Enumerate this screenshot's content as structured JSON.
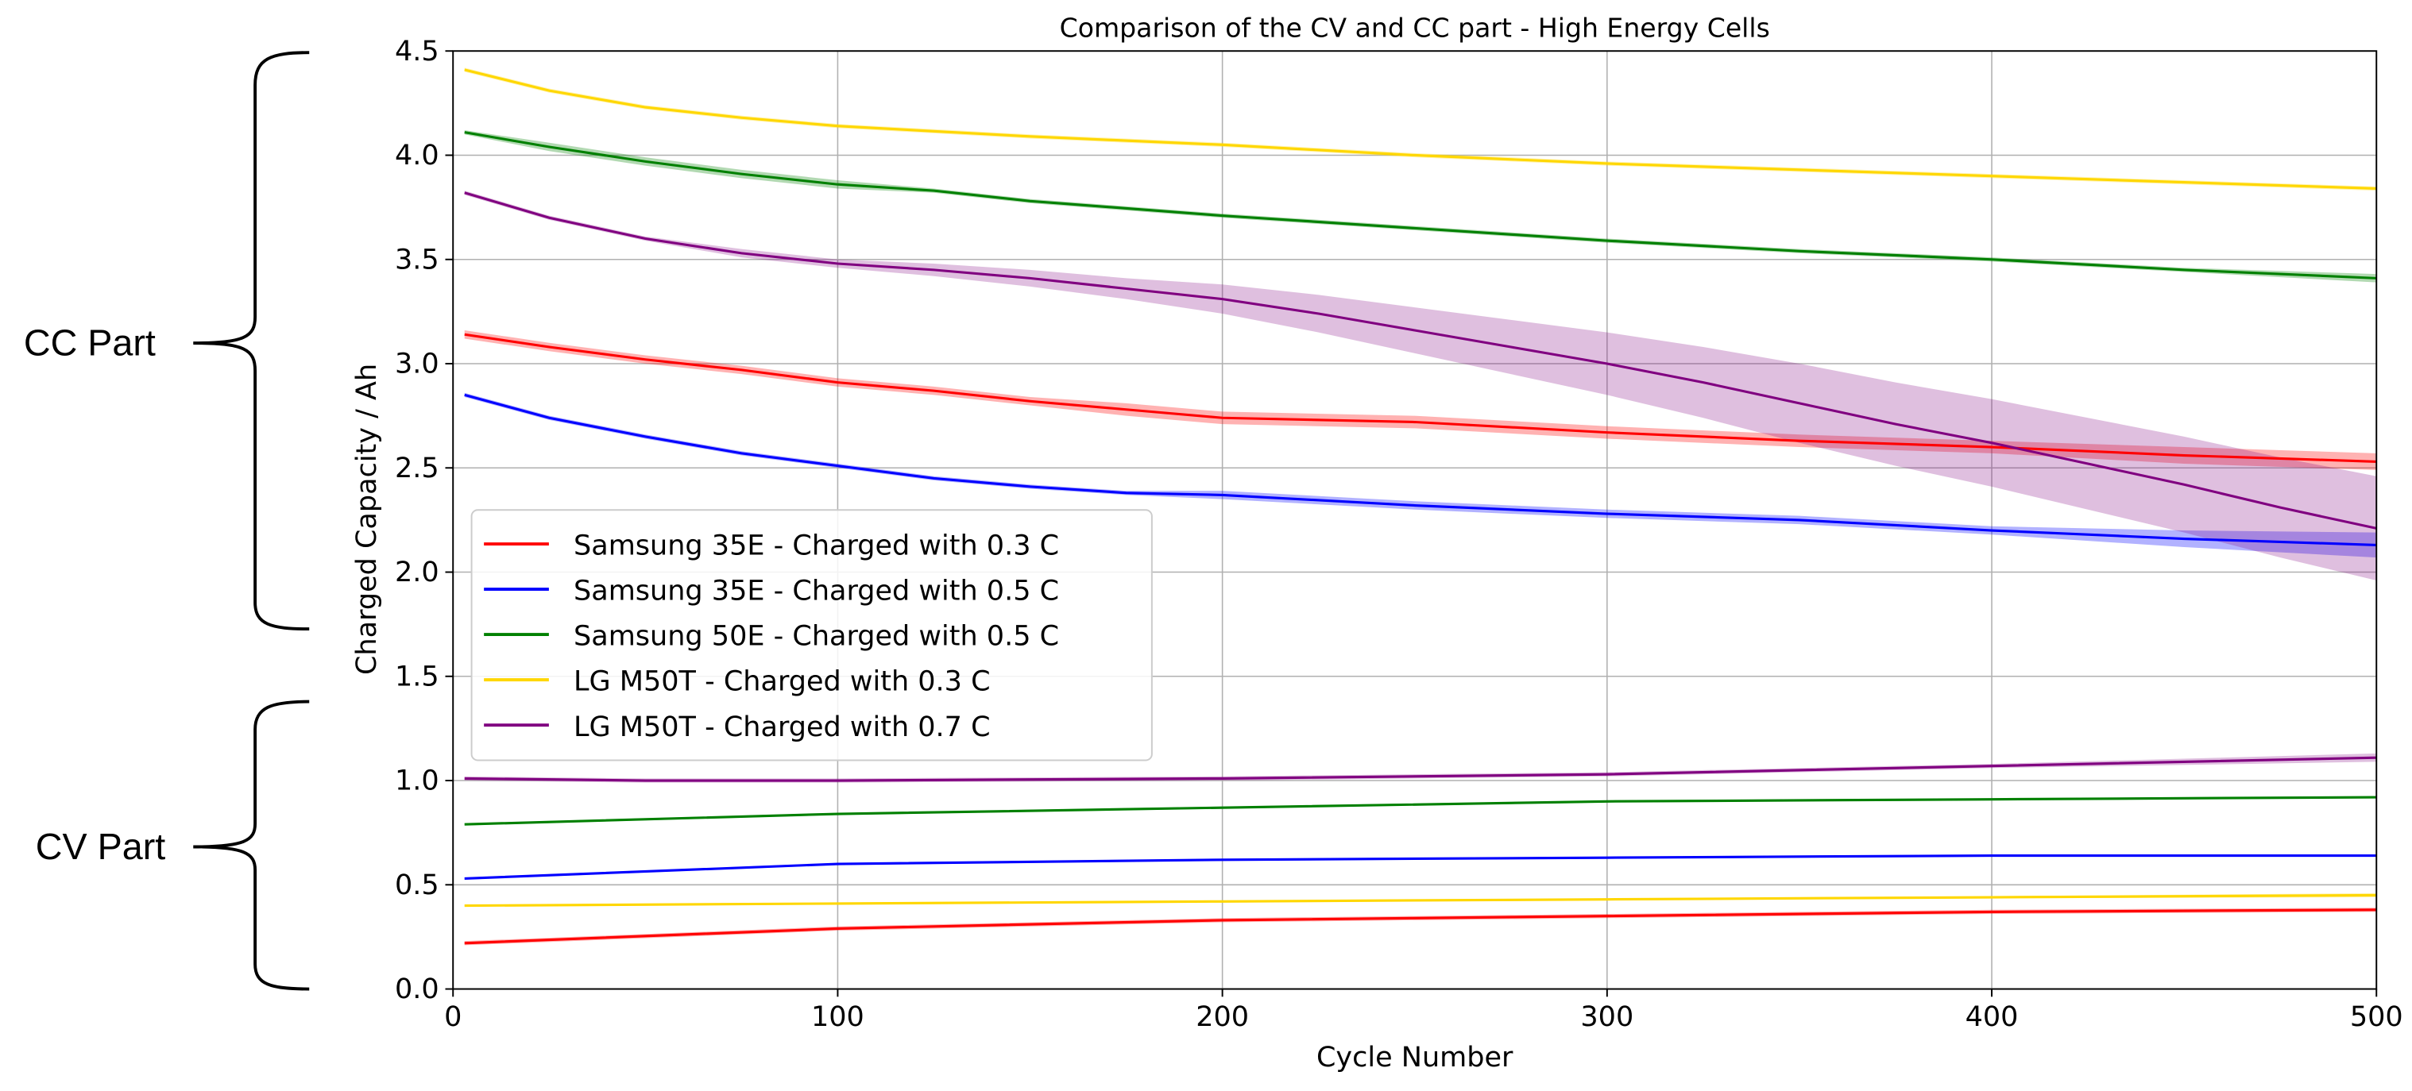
{
  "chart_data": {
    "type": "line",
    "title": "Comparison of the CV and CC part - High Energy Cells",
    "xlabel": "Cycle Number",
    "ylabel": "Charged Capacity / Ah",
    "xlim": [
      0,
      500
    ],
    "ylim": [
      0,
      4.5
    ],
    "xticks": [
      "0",
      "100",
      "200",
      "300",
      "400",
      "500"
    ],
    "yticks": [
      "0.0",
      "0.5",
      "1.0",
      "1.5",
      "2.0",
      "2.5",
      "3.0",
      "3.5",
      "4.0",
      "4.5"
    ],
    "grid": true,
    "legend_position": "center-left",
    "annotations": [
      {
        "text": "CC Part",
        "ymin": 2.0,
        "ymax": 4.5
      },
      {
        "text": "CV Part",
        "ymin": 0.0,
        "ymax": 1.4
      }
    ],
    "series": [
      {
        "name": "Samsung 35E - Charged with 0.3 C",
        "color": "#ff0000",
        "part": "CC",
        "x": [
          3,
          25,
          50,
          75,
          100,
          125,
          150,
          175,
          200,
          250,
          300,
          350,
          400,
          450,
          500
        ],
        "y": [
          3.14,
          3.08,
          3.02,
          2.97,
          2.91,
          2.87,
          2.82,
          2.78,
          2.74,
          2.72,
          2.67,
          2.63,
          2.6,
          2.56,
          2.53
        ],
        "std": [
          0.02,
          0.02,
          0.02,
          0.02,
          0.02,
          0.02,
          0.02,
          0.03,
          0.03,
          0.03,
          0.03,
          0.03,
          0.03,
          0.04,
          0.04
        ]
      },
      {
        "name": "Samsung 35E - Charged with 0.5 C",
        "color": "#0000ff",
        "part": "CC",
        "x": [
          3,
          25,
          50,
          75,
          100,
          125,
          150,
          175,
          200,
          250,
          300,
          350,
          400,
          450,
          500
        ],
        "y": [
          2.85,
          2.74,
          2.65,
          2.57,
          2.51,
          2.45,
          2.41,
          2.38,
          2.37,
          2.32,
          2.28,
          2.25,
          2.2,
          2.16,
          2.13
        ],
        "std": [
          0.01,
          0.01,
          0.01,
          0.01,
          0.01,
          0.01,
          0.01,
          0.01,
          0.02,
          0.02,
          0.02,
          0.02,
          0.02,
          0.04,
          0.06
        ]
      },
      {
        "name": "Samsung 50E - Charged with 0.5 C",
        "color": "#008000",
        "part": "CC",
        "x": [
          3,
          25,
          50,
          75,
          100,
          125,
          150,
          200,
          250,
          300,
          350,
          400,
          450,
          500
        ],
        "y": [
          4.11,
          4.04,
          3.97,
          3.91,
          3.86,
          3.83,
          3.78,
          3.71,
          3.65,
          3.59,
          3.54,
          3.5,
          3.45,
          3.41
        ],
        "std": [
          0.01,
          0.02,
          0.02,
          0.02,
          0.02,
          0.01,
          0.01,
          0.01,
          0.01,
          0.01,
          0.01,
          0.01,
          0.01,
          0.02
        ]
      },
      {
        "name": "LG M50T - Charged with 0.3 C",
        "color": "#ffd700",
        "part": "CC",
        "x": [
          3,
          25,
          50,
          75,
          100,
          150,
          200,
          250,
          300,
          350,
          400,
          450,
          500
        ],
        "y": [
          4.41,
          4.31,
          4.23,
          4.18,
          4.14,
          4.09,
          4.05,
          4.0,
          3.96,
          3.93,
          3.9,
          3.87,
          3.84
        ],
        "std": [
          0.01,
          0.01,
          0.01,
          0.01,
          0.01,
          0.01,
          0.01,
          0.01,
          0.01,
          0.01,
          0.01,
          0.01,
          0.01
        ]
      },
      {
        "name": "LG M50T - Charged with 0.7 C",
        "color": "#800080",
        "part": "CC",
        "x": [
          3,
          25,
          50,
          75,
          100,
          125,
          150,
          175,
          200,
          225,
          250,
          275,
          300,
          325,
          350,
          375,
          400,
          425,
          450,
          475,
          500
        ],
        "y": [
          3.82,
          3.7,
          3.6,
          3.53,
          3.48,
          3.45,
          3.41,
          3.36,
          3.31,
          3.24,
          3.16,
          3.08,
          3.0,
          2.91,
          2.81,
          2.71,
          2.62,
          2.52,
          2.42,
          2.31,
          2.21
        ],
        "std": [
          0.01,
          0.01,
          0.01,
          0.02,
          0.02,
          0.03,
          0.04,
          0.05,
          0.07,
          0.09,
          0.11,
          0.13,
          0.15,
          0.17,
          0.19,
          0.2,
          0.21,
          0.22,
          0.23,
          0.24,
          0.25
        ]
      },
      {
        "name": "LG M50T - Charged with 0.7 C",
        "color": "#800080",
        "part": "CV",
        "x": [
          3,
          50,
          100,
          200,
          300,
          400,
          500
        ],
        "y": [
          1.01,
          1.0,
          1.0,
          1.01,
          1.03,
          1.07,
          1.11
        ],
        "std": [
          0.01,
          0.01,
          0.01,
          0.01,
          0.01,
          0.01,
          0.02
        ]
      },
      {
        "name": "Samsung 50E - Charged with 0.5 C",
        "color": "#008000",
        "part": "CV",
        "x": [
          3,
          100,
          200,
          300,
          400,
          500
        ],
        "y": [
          0.79,
          0.84,
          0.87,
          0.9,
          0.91,
          0.92
        ],
        "std": [
          0.005,
          0.005,
          0.005,
          0.005,
          0.005,
          0.005
        ]
      },
      {
        "name": "Samsung 35E - Charged with 0.5 C",
        "color": "#0000ff",
        "part": "CV",
        "x": [
          3,
          100,
          200,
          300,
          400,
          500
        ],
        "y": [
          0.53,
          0.6,
          0.62,
          0.63,
          0.64,
          0.64
        ],
        "std": [
          0.005,
          0.005,
          0.005,
          0.005,
          0.005,
          0.005
        ]
      },
      {
        "name": "LG M50T - Charged with 0.3 C",
        "color": "#ffd700",
        "part": "CV",
        "x": [
          3,
          100,
          200,
          300,
          400,
          500
        ],
        "y": [
          0.4,
          0.41,
          0.42,
          0.43,
          0.44,
          0.45
        ],
        "std": [
          0.005,
          0.005,
          0.005,
          0.005,
          0.005,
          0.01
        ]
      },
      {
        "name": "Samsung 35E - Charged with 0.3 C",
        "color": "#ff0000",
        "part": "CV",
        "x": [
          3,
          100,
          200,
          300,
          400,
          500
        ],
        "y": [
          0.22,
          0.29,
          0.33,
          0.35,
          0.37,
          0.38
        ],
        "std": [
          0.01,
          0.01,
          0.01,
          0.01,
          0.01,
          0.01
        ]
      }
    ],
    "legend": [
      {
        "label": "Samsung 35E - Charged with 0.3 C",
        "color": "#ff0000"
      },
      {
        "label": "Samsung 35E - Charged with 0.5 C",
        "color": "#0000ff"
      },
      {
        "label": "Samsung 50E - Charged with 0.5 C",
        "color": "#008000"
      },
      {
        "label": "LG M50T - Charged with 0.3 C",
        "color": "#ffd700"
      },
      {
        "label": "LG M50T - Charged with 0.7 C",
        "color": "#800080"
      }
    ]
  }
}
